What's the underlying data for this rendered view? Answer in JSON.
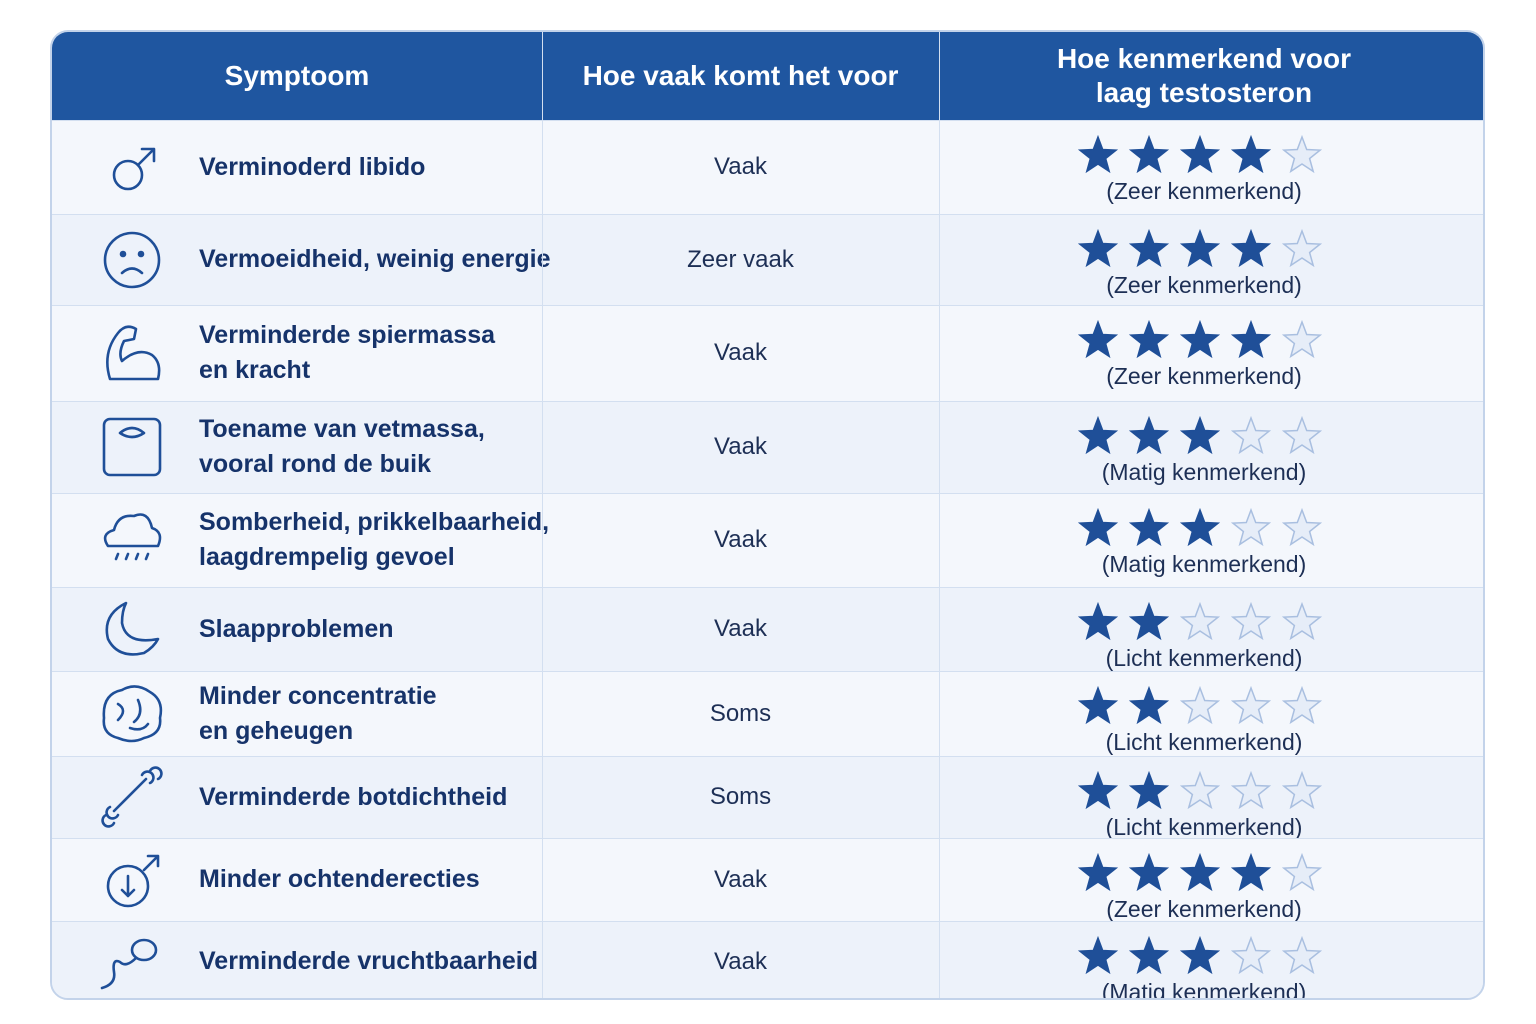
{
  "header": {
    "symptom": "Symptoom",
    "frequency": "Hoe vaak komt het voor",
    "characteristic": [
      "Hoe kenmerkend voor",
      "laag testosteron"
    ]
  },
  "scale_max": 5,
  "rows": [
    {
      "symptom": [
        "Verminoderd libido"
      ],
      "frequency": "Vaak",
      "stars": 4,
      "label": "(Zeer kenmerkend)"
    },
    {
      "symptom": [
        "Vermoeidheid, weinig energie"
      ],
      "frequency": "Zeer vaak",
      "stars": 4,
      "label": "(Zeer kenmerkend)"
    },
    {
      "symptom": [
        "Verminderde spiermassa",
        "en kracht"
      ],
      "frequency": "Vaak",
      "stars": 4,
      "label": "(Zeer kenmerkend)"
    },
    {
      "symptom": [
        "Toename van vetmassa,",
        "vooral rond de buik"
      ],
      "frequency": "Vaak",
      "stars": 3,
      "label": "(Matig kenmerkend)"
    },
    {
      "symptom": [
        "Somberheid, prikkelbaarheid,",
        "laagdrempelig gevoel"
      ],
      "frequency": "Vaak",
      "stars": 3,
      "label": "(Matig kenmerkend)"
    },
    {
      "symptom": [
        "Slaapproblemen"
      ],
      "frequency": "Vaak",
      "stars": 2,
      "label": "(Licht kenmerkend)"
    },
    {
      "symptom": [
        "Minder concentratie",
        "en geheugen"
      ],
      "frequency": "Soms",
      "stars": 2,
      "label": "(Licht kenmerkend)"
    },
    {
      "symptom": [
        "Verminderde botdichtheid"
      ],
      "frequency": "Soms",
      "stars": 2,
      "label": "(Licht kenmerkend)"
    },
    {
      "symptom": [
        "Minder ochtenderecties"
      ],
      "frequency": "Vaak",
      "stars": 4,
      "label": "(Zeer kenmerkend)"
    },
    {
      "symptom": [
        "Verminderde vruchtbaarheid"
      ],
      "frequency": "Vaak",
      "stars": 3,
      "label": "(Matig kenmerkend)"
    }
  ]
}
